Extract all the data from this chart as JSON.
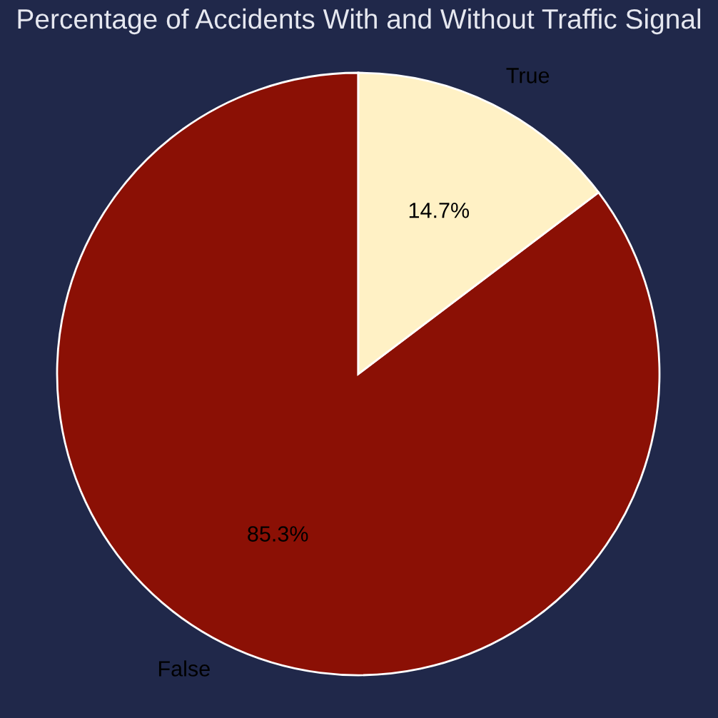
{
  "chart_data": {
    "type": "pie",
    "title": "Percentage of Accidents With and Without Traffic Signal",
    "categories": [
      "False",
      "True"
    ],
    "values": [
      85.3,
      14.7
    ],
    "colors": [
      "#8b1005",
      "#fff1c5"
    ],
    "value_labels": [
      "85.3%",
      "14.7%"
    ]
  }
}
